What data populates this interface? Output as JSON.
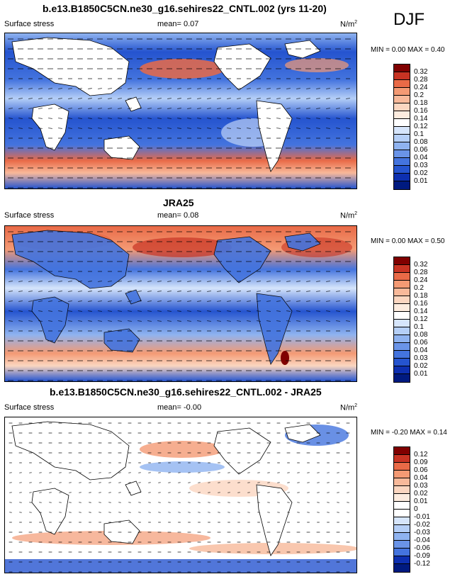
{
  "season": "DJF",
  "panels": [
    {
      "title": "b.e13.B1850C5CN.ne30_g16.sehires22_CNTL.002 (yrs 11-20)",
      "left_label": "Surface stress",
      "mean_label": "mean=  0.07",
      "units": "N/m",
      "units_sup": "2",
      "minmax": "MIN =  0.00 MAX =  0.40",
      "colorbar_labels": [
        "0.32",
        "0.28",
        "0.24",
        "0.2",
        "0.18",
        "0.16",
        "0.14",
        "0.12",
        "0.1",
        "0.08",
        "0.06",
        "0.04",
        "0.03",
        "0.02",
        "0.01"
      ],
      "colorbar_colors": [
        "#800000",
        "#c83323",
        "#e96a47",
        "#f49a74",
        "#f8b99a",
        "#fbd6c0",
        "#fdecdf",
        "#ffffff",
        "#d6e5fb",
        "#b5cff7",
        "#8fb3f0",
        "#6a94e8",
        "#4474de",
        "#2554cf",
        "#0d2fb0",
        "#001a80"
      ]
    },
    {
      "title": "JRA25",
      "left_label": "Surface stress",
      "mean_label": "mean=  0.08",
      "units": "N/m",
      "units_sup": "2",
      "minmax": "MIN =  0.00 MAX =  0.50",
      "colorbar_labels": [
        "0.32",
        "0.28",
        "0.24",
        "0.2",
        "0.18",
        "0.16",
        "0.14",
        "0.12",
        "0.1",
        "0.08",
        "0.06",
        "0.04",
        "0.03",
        "0.02",
        "0.01"
      ],
      "colorbar_colors": [
        "#800000",
        "#c83323",
        "#e96a47",
        "#f49a74",
        "#f8b99a",
        "#fbd6c0",
        "#fdecdf",
        "#ffffff",
        "#d6e5fb",
        "#b5cff7",
        "#8fb3f0",
        "#6a94e8",
        "#4474de",
        "#2554cf",
        "#0d2fb0",
        "#001a80"
      ]
    },
    {
      "title": "b.e13.B1850C5CN.ne30_g16.sehires22_CNTL.002 - JRA25",
      "left_label": "Surface stress",
      "mean_label": "mean=  -0.00",
      "units": "N/m",
      "units_sup": "2",
      "minmax": "MIN = -0.20 MAX =  0.14",
      "colorbar_labels": [
        "0.12",
        "0.09",
        "0.06",
        "0.04",
        "0.03",
        "0.02",
        "0.01",
        "0",
        "-0.01",
        "-0.02",
        "-0.03",
        "-0.04",
        "-0.06",
        "-0.09",
        "-0.12"
      ],
      "colorbar_colors": [
        "#800000",
        "#c83323",
        "#e96a47",
        "#f49a74",
        "#f8b99a",
        "#fbd6c0",
        "#fdecdf",
        "#ffffff",
        "#ffffff",
        "#d6e5fb",
        "#b5cff7",
        "#8fb3f0",
        "#6a94e8",
        "#4474de",
        "#0d2fb0",
        "#001a80"
      ]
    }
  ],
  "chart_data": [
    {
      "type": "heatmap",
      "title": "b.e13.B1850C5CN.ne30_g16.sehires22_CNTL.002 (yrs 11-20)",
      "variable": "Surface stress",
      "units": "N/m2",
      "mean": 0.07,
      "min": 0.0,
      "max": 0.4,
      "contour_levels": [
        0.01,
        0.02,
        0.03,
        0.04,
        0.06,
        0.08,
        0.1,
        0.12,
        0.14,
        0.16,
        0.18,
        0.2,
        0.24,
        0.28,
        0.32
      ]
    },
    {
      "type": "heatmap",
      "title": "JRA25",
      "variable": "Surface stress",
      "units": "N/m2",
      "mean": 0.08,
      "min": 0.0,
      "max": 0.5,
      "contour_levels": [
        0.01,
        0.02,
        0.03,
        0.04,
        0.06,
        0.08,
        0.1,
        0.12,
        0.14,
        0.16,
        0.18,
        0.2,
        0.24,
        0.28,
        0.32
      ]
    },
    {
      "type": "heatmap",
      "title": "b.e13.B1850C5CN.ne30_g16.sehires22_CNTL.002 - JRA25",
      "variable": "Surface stress",
      "units": "N/m2",
      "mean": -0.0,
      "min": -0.2,
      "max": 0.14,
      "contour_levels": [
        -0.12,
        -0.09,
        -0.06,
        -0.04,
        -0.03,
        -0.02,
        -0.01,
        0,
        0.01,
        0.02,
        0.03,
        0.04,
        0.06,
        0.09,
        0.12
      ]
    }
  ]
}
